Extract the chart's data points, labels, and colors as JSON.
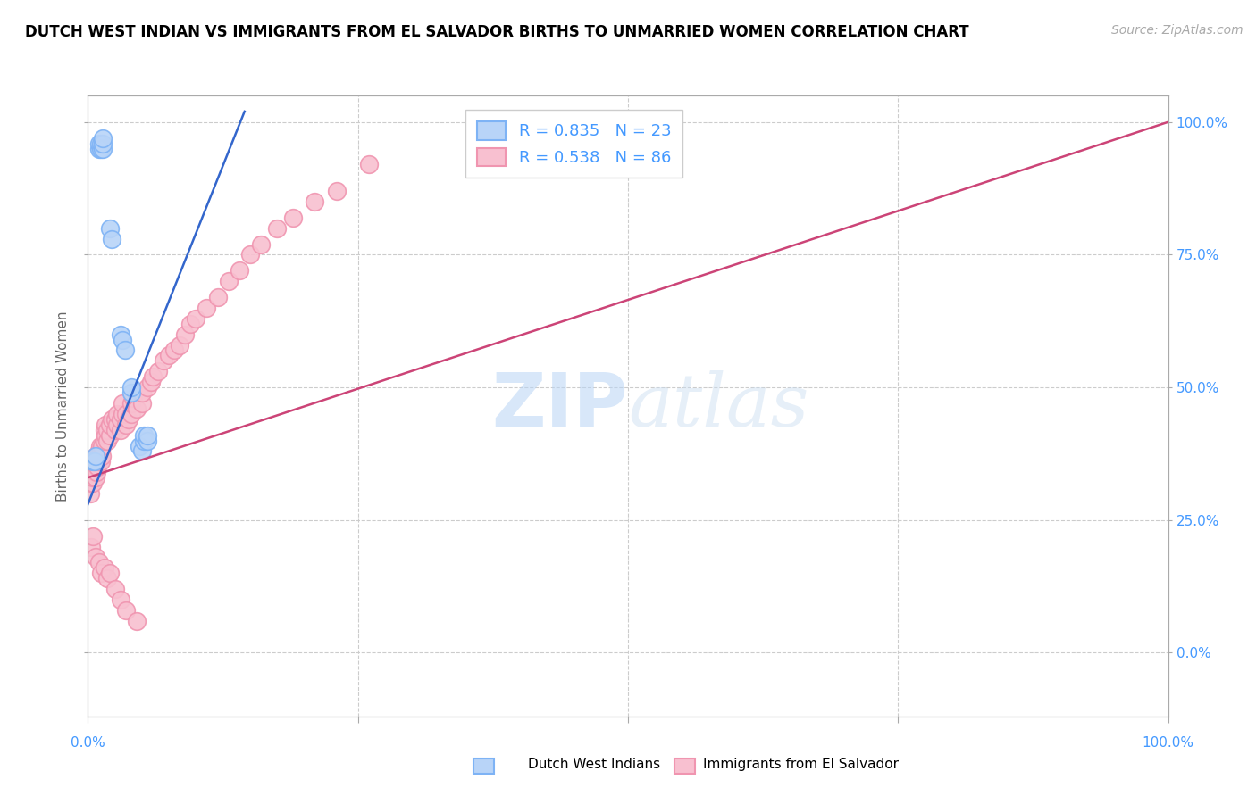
{
  "title": "DUTCH WEST INDIAN VS IMMIGRANTS FROM EL SALVADOR BIRTHS TO UNMARRIED WOMEN CORRELATION CHART",
  "source": "Source: ZipAtlas.com",
  "ylabel": "Births to Unmarried Women",
  "blue_edge": "#7EB3F5",
  "blue_face": "#B8D4F8",
  "pink_edge": "#F095B0",
  "pink_face": "#F8C0D0",
  "line_blue": "#3366CC",
  "line_pink": "#CC4477",
  "watermark": "ZIPatlas",
  "legend_r_blue": "R = 0.835",
  "legend_n_blue": "N = 23",
  "legend_r_pink": "R = 0.538",
  "legend_n_pink": "N = 86",
  "legend_label_blue": "Dutch West Indians",
  "legend_label_pink": "Immigrants from El Salvador",
  "right_tick_color": "#4499FF",
  "xlim": [
    0.0,
    1.0
  ],
  "ylim": [
    -0.12,
    1.05
  ],
  "blue_line_x": [
    0.0,
    0.145
  ],
  "blue_line_y": [
    0.28,
    1.02
  ],
  "pink_line_x": [
    0.0,
    1.0
  ],
  "pink_line_y": [
    0.33,
    1.0
  ],
  "blue_x": [
    0.01,
    0.01,
    0.012,
    0.012,
    0.014,
    0.014,
    0.014,
    0.02,
    0.022,
    0.03,
    0.032,
    0.034,
    0.04,
    0.04,
    0.048,
    0.05,
    0.052,
    0.052,
    0.055,
    0.055,
    0.005,
    0.006,
    0.007
  ],
  "blue_y": [
    0.95,
    0.96,
    0.95,
    0.96,
    0.95,
    0.96,
    0.97,
    0.8,
    0.78,
    0.6,
    0.59,
    0.57,
    0.49,
    0.5,
    0.39,
    0.38,
    0.4,
    0.41,
    0.4,
    0.41,
    0.36,
    0.36,
    0.37
  ],
  "pink_x": [
    0.001,
    0.002,
    0.003,
    0.003,
    0.004,
    0.004,
    0.005,
    0.005,
    0.005,
    0.006,
    0.006,
    0.007,
    0.007,
    0.007,
    0.008,
    0.008,
    0.009,
    0.009,
    0.01,
    0.01,
    0.011,
    0.011,
    0.012,
    0.012,
    0.013,
    0.013,
    0.015,
    0.015,
    0.016,
    0.016,
    0.018,
    0.018,
    0.02,
    0.02,
    0.022,
    0.025,
    0.025,
    0.027,
    0.027,
    0.03,
    0.03,
    0.032,
    0.032,
    0.035,
    0.035,
    0.038,
    0.04,
    0.04,
    0.042,
    0.045,
    0.05,
    0.05,
    0.055,
    0.058,
    0.06,
    0.065,
    0.07,
    0.075,
    0.08,
    0.085,
    0.09,
    0.095,
    0.1,
    0.11,
    0.12,
    0.13,
    0.14,
    0.15,
    0.16,
    0.175,
    0.19,
    0.21,
    0.23,
    0.26,
    0.003,
    0.005,
    0.007,
    0.01,
    0.012,
    0.015,
    0.018,
    0.02,
    0.025,
    0.03,
    0.035,
    0.045
  ],
  "pink_y": [
    0.33,
    0.3,
    0.32,
    0.34,
    0.33,
    0.35,
    0.32,
    0.33,
    0.35,
    0.34,
    0.36,
    0.33,
    0.35,
    0.37,
    0.34,
    0.36,
    0.35,
    0.37,
    0.36,
    0.38,
    0.37,
    0.39,
    0.36,
    0.38,
    0.37,
    0.39,
    0.4,
    0.42,
    0.41,
    0.43,
    0.4,
    0.42,
    0.41,
    0.43,
    0.44,
    0.42,
    0.44,
    0.43,
    0.45,
    0.42,
    0.44,
    0.45,
    0.47,
    0.43,
    0.45,
    0.44,
    0.45,
    0.47,
    0.48,
    0.46,
    0.47,
    0.49,
    0.5,
    0.51,
    0.52,
    0.53,
    0.55,
    0.56,
    0.57,
    0.58,
    0.6,
    0.62,
    0.63,
    0.65,
    0.67,
    0.7,
    0.72,
    0.75,
    0.77,
    0.8,
    0.82,
    0.85,
    0.87,
    0.92,
    0.2,
    0.22,
    0.18,
    0.17,
    0.15,
    0.16,
    0.14,
    0.15,
    0.12,
    0.1,
    0.08,
    0.06
  ]
}
